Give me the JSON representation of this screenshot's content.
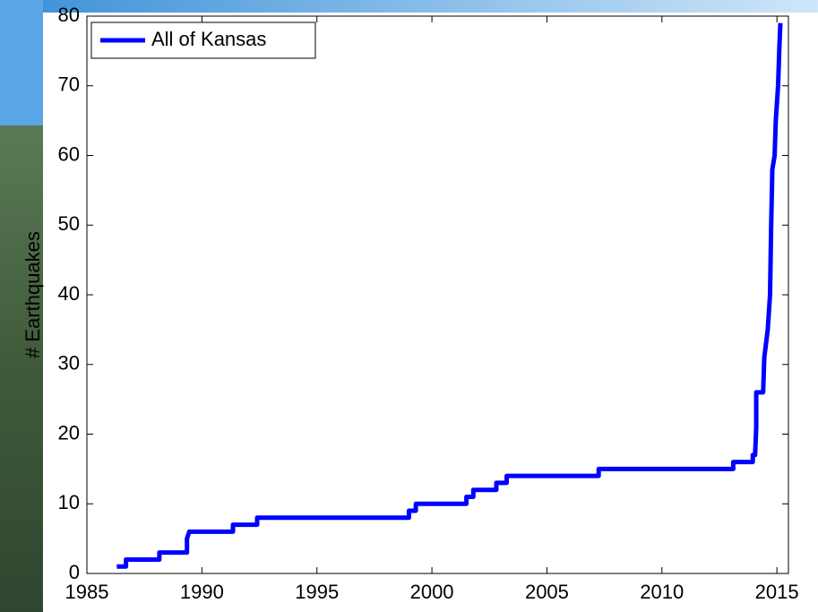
{
  "chart_data": {
    "type": "line",
    "color": "#0000ff",
    "ylabel": "# Earthquakes",
    "xlim": [
      1985,
      2015.5
    ],
    "xticks": [
      1985,
      1990,
      1995,
      2000,
      2005,
      2010,
      2015
    ],
    "ylim": [
      0,
      80
    ],
    "yticks": [
      0,
      10,
      20,
      30,
      40,
      50,
      60,
      70,
      80
    ],
    "legend": "upper left",
    "series": [
      {
        "name": "All of Kansas",
        "color": "#0000ff",
        "x": [
          1986.3,
          1986.7,
          1986.7,
          1988.15,
          1988.15,
          1989.35,
          1989.35,
          1989.45,
          1991.35,
          1991.35,
          1992.4,
          1992.4,
          1999.0,
          1999.0,
          1999.3,
          1999.3,
          2001.5,
          2001.5,
          2001.8,
          2001.8,
          2002.8,
          2002.8,
          2003.25,
          2003.25,
          2007.25,
          2007.25,
          2013.1,
          2013.1,
          2013.95,
          2013.95,
          2014.05,
          2014.1,
          2014.1,
          2014.4,
          2014.45,
          2014.6,
          2014.7,
          2014.75,
          2014.8,
          2014.9,
          2014.95,
          2015.05,
          2015.1,
          2015.15
        ],
        "values": [
          1,
          1,
          2,
          2,
          3,
          3,
          5,
          6,
          6,
          7,
          7,
          8,
          8,
          9,
          9,
          10,
          10,
          11,
          11,
          12,
          12,
          13,
          13,
          14,
          14,
          15,
          15,
          16,
          16,
          17,
          17,
          21,
          26,
          26,
          31,
          35,
          40,
          50,
          58,
          60,
          65,
          70,
          75,
          79
        ]
      }
    ]
  }
}
